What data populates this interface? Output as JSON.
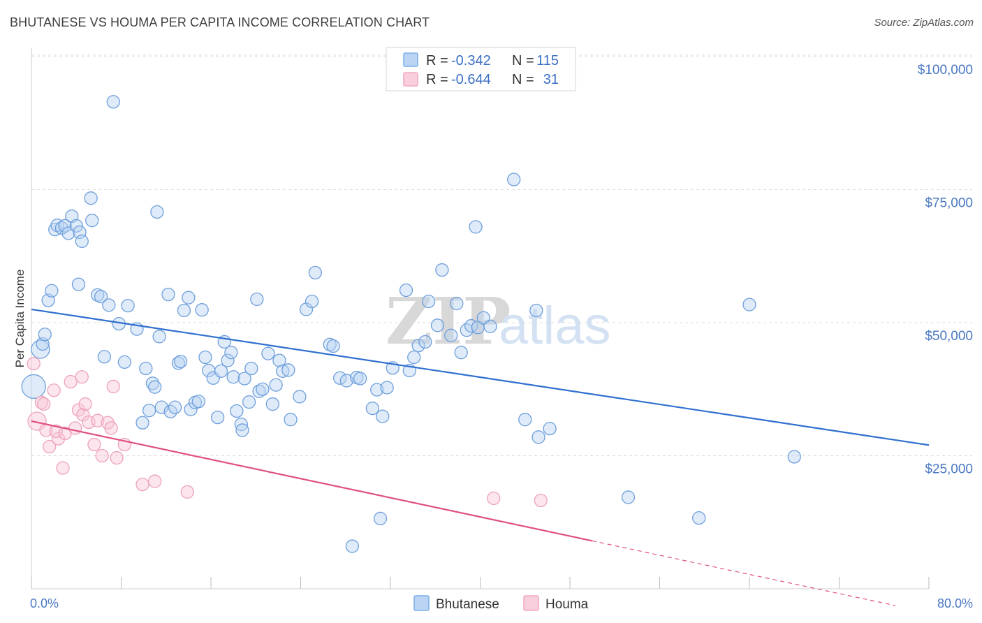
{
  "header": {
    "title": "BHUTANESE VS HOUMA PER CAPITA INCOME CORRELATION CHART",
    "source": "Source: ZipAtlas.com"
  },
  "watermark": {
    "zip": "ZIP",
    "atlas": "atlas"
  },
  "chart_data": {
    "type": "scatter",
    "ylabel": "Per Capita Income",
    "xlim": [
      0,
      80
    ],
    "ylim": [
      0,
      105000
    ],
    "x_tick_labels": [
      "0.0%",
      "80.0%"
    ],
    "y_ticks": [
      {
        "value": 25000,
        "label": "$25,000"
      },
      {
        "value": 50000,
        "label": "$50,000"
      },
      {
        "value": 75000,
        "label": "$75,000"
      },
      {
        "value": 100000,
        "label": "$100,000"
      }
    ],
    "grid": "horizontal-dashed",
    "legend_top": [
      {
        "r_label": "R =",
        "r_value": "-0.342",
        "n_label": "N =",
        "n_value": "115"
      },
      {
        "r_label": "R =",
        "r_value": "-0.644",
        "n_label": "N =",
        "n_value": "31"
      }
    ],
    "series": [
      {
        "name": "Bhutanese",
        "color": "#7aaee8",
        "line_color": "#2f6fcf",
        "trend": {
          "x0": 0,
          "y0": 52500,
          "x1": 80,
          "y1": 27000
        },
        "points": [
          [
            0.2,
            38000
          ],
          [
            0.8,
            45000
          ],
          [
            1.0,
            46000
          ],
          [
            1.2,
            47800
          ],
          [
            1.5,
            54200
          ],
          [
            1.8,
            56000
          ],
          [
            2.1,
            67500
          ],
          [
            2.3,
            68300
          ],
          [
            2.7,
            67800
          ],
          [
            3.0,
            68200
          ],
          [
            3.3,
            66800
          ],
          [
            3.6,
            70000
          ],
          [
            4.0,
            68200
          ],
          [
            4.3,
            67000
          ],
          [
            4.5,
            65300
          ],
          [
            4.2,
            57200
          ],
          [
            5.4,
            69200
          ],
          [
            5.3,
            73400
          ],
          [
            7.3,
            91500
          ],
          [
            5.9,
            55200
          ],
          [
            6.2,
            54900
          ],
          [
            6.9,
            53300
          ],
          [
            6.5,
            43600
          ],
          [
            7.8,
            49800
          ],
          [
            8.3,
            42600
          ],
          [
            8.6,
            53200
          ],
          [
            9.4,
            48800
          ],
          [
            9.9,
            31200
          ],
          [
            10.2,
            41400
          ],
          [
            10.8,
            38600
          ],
          [
            10.5,
            33500
          ],
          [
            11.0,
            37900
          ],
          [
            11.4,
            47400
          ],
          [
            11.6,
            34100
          ],
          [
            11.2,
            70800
          ],
          [
            12.2,
            55300
          ],
          [
            12.4,
            33300
          ],
          [
            12.8,
            34100
          ],
          [
            13.1,
            42400
          ],
          [
            13.3,
            42700
          ],
          [
            13.6,
            52300
          ],
          [
            14.0,
            54700
          ],
          [
            14.2,
            33700
          ],
          [
            14.6,
            35000
          ],
          [
            14.9,
            35200
          ],
          [
            15.2,
            52400
          ],
          [
            15.5,
            43500
          ],
          [
            15.8,
            41000
          ],
          [
            16.2,
            39600
          ],
          [
            16.6,
            32200
          ],
          [
            16.9,
            40900
          ],
          [
            17.2,
            46400
          ],
          [
            17.5,
            42900
          ],
          [
            17.8,
            44400
          ],
          [
            18.0,
            39800
          ],
          [
            18.3,
            33400
          ],
          [
            18.7,
            30900
          ],
          [
            18.8,
            29800
          ],
          [
            19.0,
            39500
          ],
          [
            19.4,
            35100
          ],
          [
            19.6,
            41400
          ],
          [
            20.1,
            54400
          ],
          [
            20.3,
            37100
          ],
          [
            20.6,
            37500
          ],
          [
            21.1,
            44200
          ],
          [
            21.5,
            34700
          ],
          [
            21.8,
            38300
          ],
          [
            22.1,
            42900
          ],
          [
            22.4,
            40900
          ],
          [
            22.9,
            41100
          ],
          [
            23.1,
            31800
          ],
          [
            23.9,
            36100
          ],
          [
            24.5,
            52500
          ],
          [
            25.0,
            54000
          ],
          [
            25.3,
            59400
          ],
          [
            26.6,
            45900
          ],
          [
            26.9,
            45600
          ],
          [
            27.5,
            39600
          ],
          [
            28.1,
            39100
          ],
          [
            28.6,
            8000
          ],
          [
            29.0,
            39700
          ],
          [
            29.3,
            39500
          ],
          [
            30.4,
            33900
          ],
          [
            30.8,
            37400
          ],
          [
            31.1,
            13200
          ],
          [
            31.3,
            32400
          ],
          [
            31.7,
            37800
          ],
          [
            32.2,
            41500
          ],
          [
            33.4,
            56100
          ],
          [
            33.7,
            41000
          ],
          [
            34.1,
            43500
          ],
          [
            34.5,
            45700
          ],
          [
            35.1,
            46400
          ],
          [
            35.4,
            54000
          ],
          [
            36.2,
            49500
          ],
          [
            36.6,
            59900
          ],
          [
            37.4,
            47600
          ],
          [
            37.9,
            53600
          ],
          [
            38.3,
            44400
          ],
          [
            38.8,
            48600
          ],
          [
            39.2,
            49400
          ],
          [
            39.6,
            68000
          ],
          [
            39.8,
            49100
          ],
          [
            40.3,
            50900
          ],
          [
            40.9,
            49300
          ],
          [
            43.0,
            76900
          ],
          [
            44.0,
            31800
          ],
          [
            45.2,
            28500
          ],
          [
            45.0,
            52300
          ],
          [
            46.2,
            30100
          ],
          [
            53.2,
            17200
          ],
          [
            59.5,
            13300
          ],
          [
            64.0,
            53400
          ],
          [
            68.0,
            24800
          ]
        ]
      },
      {
        "name": "Houma",
        "color": "#f2a5c0",
        "line_color": "#e0507e",
        "trend": {
          "x0": 0,
          "y0": 31500,
          "x1": 80,
          "y1": -4500
        },
        "trend_solid_end_x": 50,
        "points": [
          [
            0.2,
            42300
          ],
          [
            0.5,
            31500
          ],
          [
            0.9,
            35000
          ],
          [
            1.1,
            34700
          ],
          [
            1.3,
            29800
          ],
          [
            1.6,
            26700
          ],
          [
            2.0,
            37300
          ],
          [
            2.4,
            28200
          ],
          [
            2.2,
            29600
          ],
          [
            2.8,
            22700
          ],
          [
            3.0,
            29200
          ],
          [
            3.5,
            38900
          ],
          [
            3.9,
            30200
          ],
          [
            4.2,
            33600
          ],
          [
            4.5,
            39800
          ],
          [
            4.6,
            32700
          ],
          [
            4.8,
            34700
          ],
          [
            5.1,
            31300
          ],
          [
            5.6,
            27100
          ],
          [
            5.9,
            31600
          ],
          [
            6.3,
            25000
          ],
          [
            6.8,
            31200
          ],
          [
            7.1,
            30200
          ],
          [
            7.3,
            38000
          ],
          [
            7.6,
            24600
          ],
          [
            8.3,
            27100
          ],
          [
            9.9,
            19600
          ],
          [
            11.0,
            20200
          ],
          [
            13.9,
            18200
          ],
          [
            41.2,
            17000
          ],
          [
            45.4,
            16600
          ]
        ]
      }
    ]
  }
}
